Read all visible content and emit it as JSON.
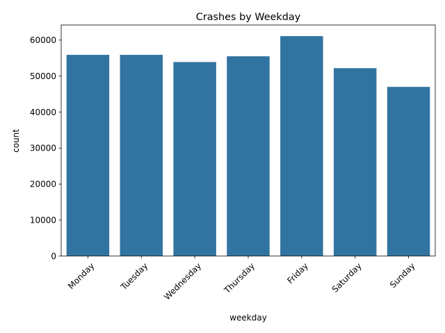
{
  "chart_data": {
    "type": "bar",
    "title": "Crashes by Weekday",
    "xlabel": "weekday",
    "ylabel": "count",
    "categories": [
      "Monday",
      "Tuesday",
      "Wednesday",
      "Thursday",
      "Friday",
      "Saturday",
      "Sunday"
    ],
    "values": [
      55900,
      55900,
      53900,
      55500,
      61100,
      52200,
      47000
    ],
    "ylim": [
      0,
      64200
    ],
    "yticks": [
      0,
      10000,
      20000,
      30000,
      40000,
      50000,
      60000
    ],
    "bar_color": "#3274a1",
    "grid": false,
    "legend": "none"
  }
}
